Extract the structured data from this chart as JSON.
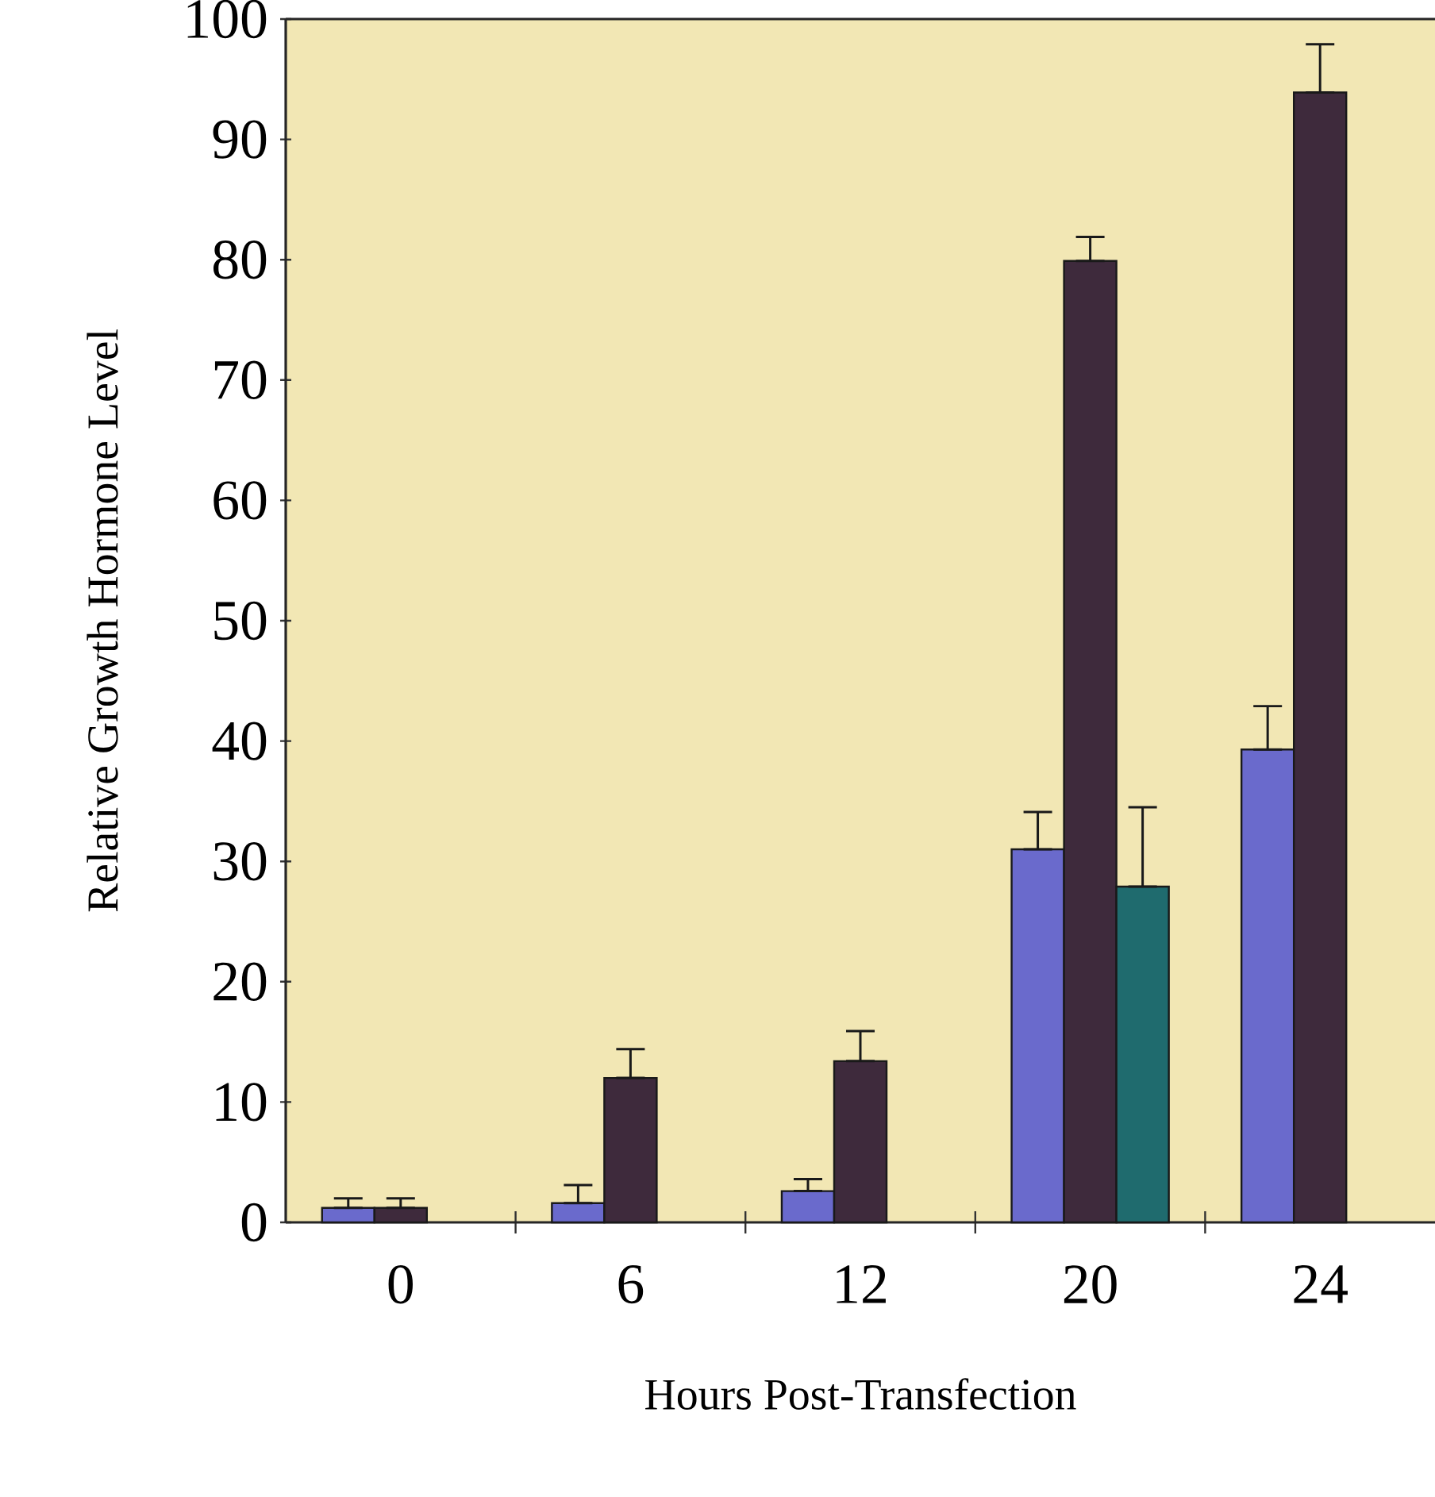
{
  "chart_data": {
    "type": "bar",
    "xlabel": "Hours Post-Transfection",
    "ylabel": "Relative Growth Hormone Level",
    "categories": [
      "0",
      "6",
      "12",
      "20",
      "24"
    ],
    "series": [
      {
        "color": "#6a6acc",
        "values": [
          1.2,
          1.6,
          2.6,
          31.0,
          39.3
        ],
        "errors": [
          [
            1.2,
            2.0
          ],
          [
            1.6,
            3.1
          ],
          [
            2.6,
            3.6
          ],
          [
            31.0,
            34.1
          ],
          [
            39.3,
            42.9
          ]
        ]
      },
      {
        "color": "#3e2a3c",
        "values": [
          1.2,
          12.0,
          13.4,
          79.9,
          93.9
        ],
        "errors": [
          [
            1.2,
            2.0
          ],
          [
            12.0,
            14.4
          ],
          [
            13.4,
            15.9
          ],
          [
            79.9,
            81.9
          ],
          [
            93.9,
            97.9
          ]
        ]
      },
      {
        "color": "#1f6b6e",
        "values": [
          null,
          null,
          null,
          27.9,
          null
        ],
        "errors": [
          null,
          null,
          null,
          [
            27.9,
            34.5
          ],
          null
        ]
      }
    ],
    "ylim": [
      0,
      100
    ],
    "yticks": [
      0,
      10,
      20,
      30,
      40,
      50,
      60,
      70,
      80,
      90,
      100
    ],
    "grid": false
  }
}
